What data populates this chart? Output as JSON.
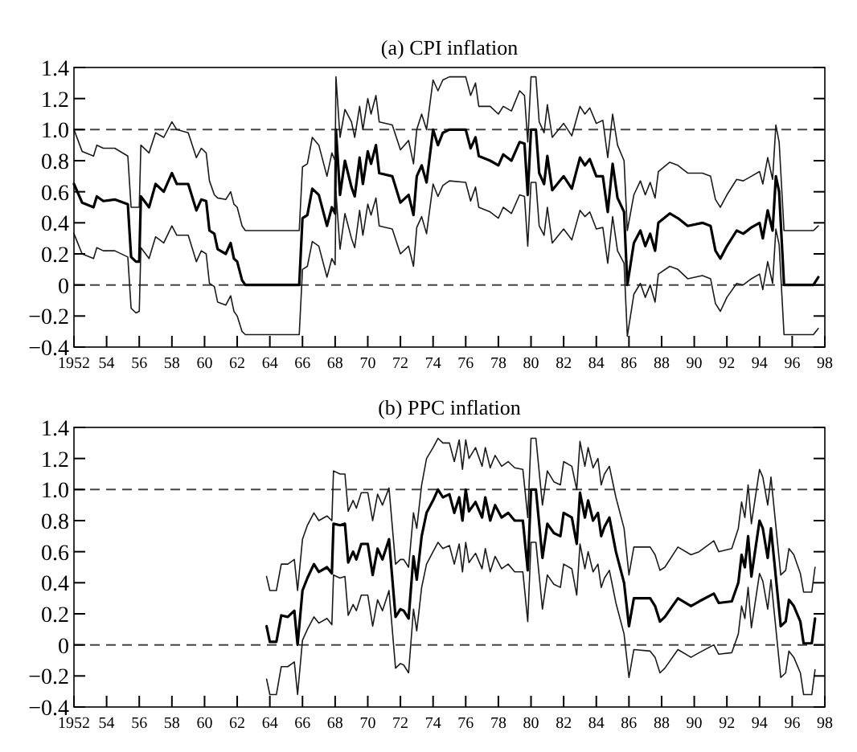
{
  "chart_data": [
    {
      "type": "line",
      "title": "(a) CPI inflation",
      "x": [
        1952,
        1952.5,
        1953.2,
        1953.4,
        1953.8,
        1954.5,
        1955.3,
        1955.5,
        1955.8,
        1956,
        1956.1,
        1956.6,
        1957,
        1957.5,
        1958,
        1958.3,
        1959,
        1959.5,
        1959.8,
        1960.1,
        1960.3,
        1960.6,
        1960.8,
        1961.3,
        1961.6,
        1961.8,
        1962,
        1962.3,
        1962.5,
        1965.8,
        1966,
        1966.3,
        1966.6,
        1967,
        1967.5,
        1967.8,
        1968,
        1968.05,
        1968.3,
        1968.6,
        1969,
        1969.2,
        1969.5,
        1969.7,
        1970,
        1970.2,
        1970.5,
        1970.7,
        1971.5,
        1972,
        1972.5,
        1972.8,
        1973,
        1973.3,
        1973.6,
        1974,
        1974.3,
        1974.6,
        1975,
        1976,
        1976.3,
        1976.6,
        1976.8,
        1977.5,
        1978,
        1978.3,
        1978.8,
        1979.3,
        1979.6,
        1979.8,
        1980,
        1980.3,
        1980.5,
        1980.8,
        1981,
        1981.3,
        1982,
        1982.5,
        1983,
        1983.3,
        1983.6,
        1984,
        1984.4,
        1984.7,
        1985,
        1985.3,
        1985.7,
        1985.9,
        1986.3,
        1986.7,
        1987,
        1987.3,
        1987.6,
        1987.8,
        1988.5,
        1989,
        1989.6,
        1990.5,
        1991,
        1991.3,
        1991.6,
        1992,
        1992.6,
        1993,
        1993.5,
        1994,
        1994.2,
        1994.5,
        1994.8,
        1995,
        1995.2,
        1995.5,
        1997.3,
        1997.6
      ],
      "series": [
        {
          "color": "#000000",
          "values": [
            0.65,
            0.53,
            0.5,
            0.57,
            0.54,
            0.55,
            0.52,
            0.18,
            0.15,
            0.15,
            0.57,
            0.5,
            0.65,
            0.6,
            0.72,
            0.65,
            0.65,
            0.48,
            0.55,
            0.54,
            0.35,
            0.33,
            0.23,
            0.2,
            0.27,
            0.17,
            0.15,
            0.03,
            0,
            0,
            0.43,
            0.45,
            0.62,
            0.58,
            0.38,
            0.5,
            0.46,
            1.0,
            0.58,
            0.8,
            0.63,
            0.57,
            0.82,
            0.65,
            0.86,
            0.78,
            0.9,
            0.72,
            0.7,
            0.53,
            0.58,
            0.45,
            0.7,
            0.77,
            0.66,
            1.0,
            0.9,
            0.98,
            1.0,
            1.0,
            0.88,
            0.95,
            0.83,
            0.8,
            0.77,
            0.84,
            0.8,
            0.92,
            0.91,
            0.58,
            1.0,
            1.0,
            0.72,
            0.65,
            0.83,
            0.61,
            0.7,
            0.62,
            0.82,
            0.77,
            0.81,
            0.7,
            0.7,
            0.47,
            0.78,
            0.56,
            0.47,
            0,
            0.27,
            0.35,
            0.25,
            0.33,
            0.22,
            0.4,
            0.46,
            0.43,
            0.38,
            0.4,
            0.38,
            0.22,
            0.17,
            0.25,
            0.35,
            0.33,
            0.37,
            0.4,
            0.3,
            0.48,
            0.35,
            0.7,
            0.6,
            0,
            0,
            0.05
          ]
        },
        {
          "color": "#1a1a1a",
          "values": [
            1.0,
            0.86,
            0.83,
            0.9,
            0.88,
            0.88,
            0.83,
            0.5,
            0.5,
            0.5,
            0.9,
            0.85,
            0.98,
            0.95,
            1.05,
            1.0,
            0.98,
            0.82,
            0.88,
            0.85,
            0.67,
            0.58,
            0.56,
            0.55,
            0.6,
            0.52,
            0.5,
            0.38,
            0.35,
            0.35,
            0.76,
            0.78,
            0.95,
            0.9,
            0.7,
            0.85,
            0.8,
            1.34,
            0.95,
            1.13,
            1.05,
            0.95,
            1.15,
            1.0,
            1.2,
            1.1,
            1.22,
            1.05,
            1.03,
            0.87,
            0.93,
            0.78,
            1.0,
            1.1,
            1.0,
            1.32,
            1.25,
            1.32,
            1.34,
            1.34,
            1.22,
            1.3,
            1.15,
            1.15,
            1.1,
            1.15,
            1.12,
            1.25,
            1.22,
            0.92,
            1.34,
            1.34,
            1.05,
            0.98,
            1.16,
            0.95,
            1.04,
            0.96,
            1.15,
            1.1,
            1.14,
            1.04,
            1.06,
            0.82,
            1.1,
            0.9,
            0.8,
            0.35,
            0.58,
            0.67,
            0.58,
            0.66,
            0.56,
            0.73,
            0.79,
            0.77,
            0.72,
            0.72,
            0.7,
            0.55,
            0.5,
            0.58,
            0.68,
            0.67,
            0.7,
            0.73,
            0.65,
            0.82,
            0.68,
            1.03,
            0.92,
            0.35,
            0.35,
            0.38
          ]
        },
        {
          "color": "#1a1a1a",
          "values": [
            0.33,
            0.2,
            0.17,
            0.24,
            0.22,
            0.22,
            0.18,
            -0.15,
            -0.18,
            -0.17,
            0.24,
            0.17,
            0.31,
            0.27,
            0.38,
            0.32,
            0.32,
            0.15,
            0.22,
            0.2,
            0.01,
            -0.01,
            -0.11,
            -0.13,
            -0.07,
            -0.17,
            -0.2,
            -0.3,
            -0.32,
            -0.32,
            0.1,
            0.12,
            0.28,
            0.25,
            0.05,
            0.17,
            0.13,
            0.6,
            0.23,
            0.46,
            0.3,
            0.24,
            0.48,
            0.32,
            0.52,
            0.45,
            0.56,
            0.38,
            0.36,
            0.2,
            0.25,
            0.12,
            0.37,
            0.44,
            0.33,
            0.65,
            0.57,
            0.64,
            0.67,
            0.66,
            0.54,
            0.63,
            0.5,
            0.47,
            0.43,
            0.5,
            0.46,
            0.58,
            0.57,
            0.25,
            0.66,
            0.66,
            0.38,
            0.32,
            0.5,
            0.27,
            0.36,
            0.29,
            0.48,
            0.44,
            0.47,
            0.36,
            0.37,
            0.14,
            0.44,
            0.22,
            0.14,
            -0.33,
            -0.06,
            0.01,
            -0.08,
            0.0,
            -0.11,
            0.07,
            0.12,
            0.1,
            0.04,
            0.06,
            0.04,
            -0.12,
            -0.17,
            -0.08,
            0.01,
            0.0,
            0.04,
            0.07,
            -0.03,
            0.15,
            0.01,
            0.36,
            0.26,
            -0.32,
            -0.32,
            -0.28
          ]
        }
      ],
      "xlim": [
        1952,
        1998
      ],
      "xticks": [
        {
          "value": 1952,
          "label": "1952"
        },
        {
          "value": 1954,
          "label": "54"
        },
        {
          "value": 1956,
          "label": "56"
        },
        {
          "value": 1958,
          "label": "58"
        },
        {
          "value": 1960,
          "label": "60"
        },
        {
          "value": 1962,
          "label": "62"
        },
        {
          "value": 1964,
          "label": "64"
        },
        {
          "value": 1966,
          "label": "66"
        },
        {
          "value": 1968,
          "label": "68"
        },
        {
          "value": 1970,
          "label": "70"
        },
        {
          "value": 1972,
          "label": "72"
        },
        {
          "value": 1974,
          "label": "74"
        },
        {
          "value": 1976,
          "label": "76"
        },
        {
          "value": 1978,
          "label": "78"
        },
        {
          "value": 1980,
          "label": "80"
        },
        {
          "value": 1982,
          "label": "82"
        },
        {
          "value": 1984,
          "label": "84"
        },
        {
          "value": 1986,
          "label": "86"
        },
        {
          "value": 1988,
          "label": "88"
        },
        {
          "value": 1990,
          "label": "90"
        },
        {
          "value": 1992,
          "label": "92"
        },
        {
          "value": 1994,
          "label": "94"
        },
        {
          "value": 1996,
          "label": "96"
        },
        {
          "value": 1998,
          "label": "98"
        }
      ],
      "ylim": [
        -0.4,
        1.4
      ],
      "yticks": [
        {
          "value": -0.4,
          "label": "−0.4"
        },
        {
          "value": -0.2,
          "label": "−0.2"
        },
        0,
        0.2,
        0.4,
        0.6,
        0.8,
        {
          "value": 1,
          "label": "1.0"
        },
        1.2,
        1.4
      ],
      "ref_lines": [
        {
          "axis": "y",
          "value": 0,
          "line_style": "dashed"
        },
        {
          "axis": "y",
          "value": 1,
          "line_style": "dashed"
        }
      ],
      "grid": false
    },
    {
      "type": "line",
      "title": "(b) PPC inflation",
      "x": [
        1963.8,
        1964.0,
        1964.4,
        1964.7,
        1965.1,
        1965.5,
        1965.7,
        1966.0,
        1966.3,
        1966.7,
        1967.0,
        1967.5,
        1967.8,
        1967.9,
        1968.3,
        1968.6,
        1968.8,
        1969.1,
        1969.3,
        1969.6,
        1970.0,
        1970.3,
        1970.6,
        1970.9,
        1971.3,
        1971.7,
        1972.0,
        1972.2,
        1972.5,
        1972.8,
        1973.0,
        1973.3,
        1973.6,
        1974.0,
        1974.3,
        1974.6,
        1975.0,
        1975.3,
        1975.6,
        1975.8,
        1976.0,
        1976.2,
        1976.6,
        1977.0,
        1977.2,
        1977.5,
        1977.8,
        1978.2,
        1978.6,
        1979.0,
        1979.5,
        1979.8,
        1980.0,
        1980.3,
        1980.7,
        1981.0,
        1981.4,
        1981.8,
        1982.0,
        1982.5,
        1982.8,
        1983.0,
        1983.3,
        1983.5,
        1983.8,
        1984.1,
        1984.3,
        1984.5,
        1984.8,
        1985.2,
        1985.7,
        1986.0,
        1986.3,
        1987.3,
        1987.6,
        1987.9,
        1988.2,
        1989.0,
        1989.8,
        1990.3,
        1991.2,
        1991.5,
        1992.3,
        1992.7,
        1992.9,
        1993.1,
        1993.3,
        1993.5,
        1994.0,
        1994.2,
        1994.5,
        1994.7,
        1995.3,
        1995.6,
        1995.8,
        1996.1,
        1996.5,
        1996.7,
        1997.2,
        1997.4
      ],
      "series": [
        {
          "color": "#000000",
          "values": [
            0.12,
            0.02,
            0.02,
            0.19,
            0.18,
            0.22,
            0.0,
            0.35,
            0.43,
            0.52,
            0.47,
            0.5,
            0.46,
            0.78,
            0.77,
            0.78,
            0.53,
            0.6,
            0.55,
            0.65,
            0.65,
            0.45,
            0.62,
            0.55,
            0.68,
            0.18,
            0.23,
            0.22,
            0.17,
            0.57,
            0.42,
            0.7,
            0.85,
            0.93,
            1.0,
            0.95,
            0.97,
            0.85,
            0.95,
            0.8,
            1.0,
            0.86,
            0.92,
            0.82,
            0.95,
            0.8,
            0.9,
            0.82,
            0.85,
            0.8,
            0.8,
            0.48,
            1.0,
            1.0,
            0.56,
            0.78,
            0.72,
            0.7,
            0.85,
            0.82,
            0.65,
            0.98,
            0.82,
            0.93,
            0.8,
            0.85,
            0.7,
            0.76,
            0.82,
            0.6,
            0.4,
            0.12,
            0.3,
            0.3,
            0.25,
            0.15,
            0.18,
            0.3,
            0.25,
            0.28,
            0.33,
            0.27,
            0.28,
            0.4,
            0.58,
            0.5,
            0.7,
            0.44,
            0.8,
            0.75,
            0.56,
            0.75,
            0.12,
            0.15,
            0.29,
            0.25,
            0.15,
            0.01,
            0.01,
            0.17
          ]
        },
        {
          "color": "#1a1a1a",
          "values": [
            0.44,
            0.35,
            0.35,
            0.52,
            0.52,
            0.55,
            0.35,
            0.68,
            0.77,
            0.85,
            0.8,
            0.83,
            0.8,
            1.12,
            1.1,
            1.1,
            0.86,
            0.93,
            0.88,
            0.98,
            0.98,
            0.8,
            0.97,
            0.9,
            1.01,
            0.52,
            0.55,
            0.55,
            0.5,
            0.85,
            0.75,
            1.03,
            1.2,
            1.27,
            1.33,
            1.3,
            1.3,
            1.18,
            1.32,
            1.13,
            1.32,
            1.2,
            1.27,
            1.15,
            1.27,
            1.14,
            1.22,
            1.15,
            1.18,
            1.14,
            1.13,
            0.82,
            1.33,
            1.33,
            0.9,
            1.12,
            1.05,
            1.03,
            1.18,
            1.15,
            1.0,
            1.31,
            1.15,
            1.27,
            1.14,
            1.2,
            1.03,
            1.1,
            1.15,
            0.95,
            0.75,
            0.45,
            0.63,
            0.63,
            0.58,
            0.48,
            0.5,
            0.63,
            0.58,
            0.6,
            0.67,
            0.6,
            0.62,
            0.75,
            0.92,
            0.82,
            1.03,
            0.78,
            1.13,
            1.08,
            0.9,
            1.08,
            0.45,
            0.48,
            0.62,
            0.58,
            0.46,
            0.34,
            0.34,
            0.5
          ]
        },
        {
          "color": "#1a1a1a",
          "values": [
            -0.22,
            -0.32,
            -0.32,
            -0.14,
            -0.14,
            -0.11,
            -0.32,
            0.03,
            0.1,
            0.18,
            0.14,
            0.17,
            0.13,
            0.45,
            0.43,
            0.44,
            0.19,
            0.26,
            0.22,
            0.32,
            0.32,
            0.12,
            0.29,
            0.22,
            0.35,
            -0.15,
            -0.12,
            -0.13,
            -0.18,
            0.23,
            0.09,
            0.37,
            0.52,
            0.6,
            0.66,
            0.62,
            0.64,
            0.52,
            0.65,
            0.47,
            0.66,
            0.53,
            0.59,
            0.49,
            0.62,
            0.47,
            0.57,
            0.49,
            0.52,
            0.47,
            0.47,
            0.15,
            0.66,
            0.66,
            0.23,
            0.45,
            0.39,
            0.37,
            0.52,
            0.49,
            0.32,
            0.65,
            0.49,
            0.6,
            0.47,
            0.52,
            0.37,
            0.43,
            0.48,
            0.27,
            0.07,
            -0.21,
            -0.03,
            -0.04,
            -0.08,
            -0.18,
            -0.15,
            -0.03,
            -0.08,
            -0.05,
            0.0,
            -0.06,
            -0.05,
            0.07,
            0.25,
            0.17,
            0.37,
            0.11,
            0.46,
            0.41,
            0.23,
            0.42,
            -0.21,
            -0.18,
            -0.04,
            -0.08,
            -0.18,
            -0.32,
            -0.32,
            -0.16
          ]
        }
      ],
      "xlim": [
        1952,
        1998
      ],
      "xticks": [
        {
          "value": 1952,
          "label": "1952"
        },
        {
          "value": 1954,
          "label": "54"
        },
        {
          "value": 1956,
          "label": "56"
        },
        {
          "value": 1958,
          "label": "58"
        },
        {
          "value": 1960,
          "label": "60"
        },
        {
          "value": 1962,
          "label": "62"
        },
        {
          "value": 1964,
          "label": "64"
        },
        {
          "value": 1966,
          "label": "66"
        },
        {
          "value": 1968,
          "label": "68"
        },
        {
          "value": 1970,
          "label": "70"
        },
        {
          "value": 1972,
          "label": "72"
        },
        {
          "value": 1974,
          "label": "74"
        },
        {
          "value": 1976,
          "label": "76"
        },
        {
          "value": 1978,
          "label": "78"
        },
        {
          "value": 1980,
          "label": "80"
        },
        {
          "value": 1982,
          "label": "82"
        },
        {
          "value": 1984,
          "label": "84"
        },
        {
          "value": 1986,
          "label": "86"
        },
        {
          "value": 1988,
          "label": "88"
        },
        {
          "value": 1990,
          "label": "90"
        },
        {
          "value": 1992,
          "label": "92"
        },
        {
          "value": 1994,
          "label": "94"
        },
        {
          "value": 1996,
          "label": "96"
        },
        {
          "value": 1998,
          "label": "98"
        }
      ],
      "ylim": [
        -0.4,
        1.4
      ],
      "yticks": [
        {
          "value": -0.4,
          "label": "−0.4"
        },
        {
          "value": -0.2,
          "label": "−0.2"
        },
        0,
        0.2,
        0.4,
        0.6,
        0.8,
        {
          "value": 1,
          "label": "1.0"
        },
        1.2,
        1.4
      ],
      "ref_lines": [
        {
          "axis": "y",
          "value": 0,
          "line_style": "dashed"
        },
        {
          "axis": "y",
          "value": 1,
          "line_style": "dashed"
        }
      ],
      "grid": false
    }
  ]
}
